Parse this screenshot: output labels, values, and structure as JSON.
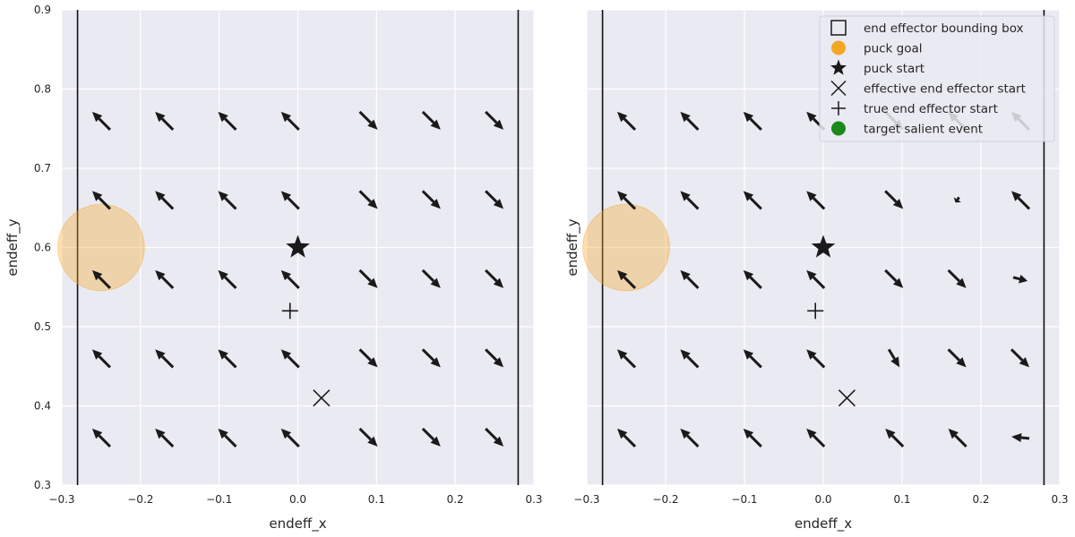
{
  "chart_data": [
    {
      "type": "quiver",
      "xlabel": "endeff_x",
      "ylabel": "endeff_y",
      "xlim": [
        -0.3,
        0.3
      ],
      "ylim": [
        0.3,
        0.9
      ],
      "xticks": [
        "−0.3",
        "−0.2",
        "−0.1",
        "0.0",
        "0.1",
        "0.2",
        "0.3"
      ],
      "yticks": [
        "0.3",
        "0.4",
        "0.5",
        "0.6",
        "0.7",
        "0.8",
        "0.9"
      ],
      "grid": true,
      "bounding_box_x": [
        -0.28,
        0.28
      ],
      "puck_goal": {
        "x": -0.25,
        "y": 0.6,
        "color": "#f5a623"
      },
      "puck_start": {
        "x": 0.0,
        "y": 0.6
      },
      "effective_end_effector_start": {
        "x": 0.03,
        "y": 0.41
      },
      "true_end_effector_start": {
        "x": -0.01,
        "y": 0.52
      },
      "arrow_x": [
        -0.25,
        -0.17,
        -0.09,
        -0.01,
        0.09,
        0.17,
        0.25
      ],
      "arrow_y": [
        0.36,
        0.46,
        0.56,
        0.66,
        0.76
      ],
      "arrows": [
        [
          [
            -1,
            1
          ],
          [
            -1,
            1
          ],
          [
            -1,
            1
          ],
          [
            -1,
            1
          ],
          [
            1,
            -1
          ],
          [
            1,
            -1
          ],
          [
            1,
            -1
          ]
        ],
        [
          [
            -1,
            1
          ],
          [
            -1,
            1
          ],
          [
            -1,
            1
          ],
          [
            -1,
            1
          ],
          [
            1,
            -1
          ],
          [
            1,
            -1
          ],
          [
            1,
            -1
          ]
        ],
        [
          [
            -1,
            1
          ],
          [
            -1,
            1
          ],
          [
            -1,
            1
          ],
          [
            -1,
            1
          ],
          [
            1,
            -1
          ],
          [
            1,
            -1
          ],
          [
            1,
            -1
          ]
        ],
        [
          [
            -1,
            1
          ],
          [
            -1,
            1
          ],
          [
            -1,
            1
          ],
          [
            -1,
            1
          ],
          [
            1,
            -1
          ],
          [
            1,
            -1
          ],
          [
            1,
            -1
          ]
        ],
        [
          [
            -1,
            1
          ],
          [
            -1,
            1
          ],
          [
            -1,
            1
          ],
          [
            -1,
            1
          ],
          [
            1,
            -1
          ],
          [
            1,
            -1
          ],
          [
            1,
            -1
          ]
        ]
      ]
    },
    {
      "type": "quiver",
      "xlabel": "endeff_x",
      "ylabel": "endeff_y",
      "xlim": [
        -0.3,
        0.3
      ],
      "ylim": [
        0.3,
        0.9
      ],
      "xticks": [
        "−0.3",
        "−0.2",
        "−0.1",
        "0.0",
        "0.1",
        "0.2",
        "0.3"
      ],
      "yticks": [
        "0.3",
        "0.4",
        "0.5",
        "0.6",
        "0.7",
        "0.8",
        "0.9"
      ],
      "grid": true,
      "legend_position": "top-right",
      "bounding_box_x": [
        -0.28,
        0.28
      ],
      "puck_goal": {
        "x": -0.25,
        "y": 0.6,
        "color": "#f5a623"
      },
      "puck_start": {
        "x": 0.0,
        "y": 0.6
      },
      "effective_end_effector_start": {
        "x": 0.03,
        "y": 0.41
      },
      "true_end_effector_start": {
        "x": -0.01,
        "y": 0.52
      },
      "arrow_x": [
        -0.25,
        -0.17,
        -0.09,
        -0.01,
        0.09,
        0.17,
        0.25
      ],
      "arrow_y": [
        0.36,
        0.46,
        0.56,
        0.66,
        0.76
      ],
      "arrows": [
        [
          [
            -1,
            1
          ],
          [
            -1,
            1
          ],
          [
            -1,
            1
          ],
          [
            -1,
            1
          ],
          [
            -1,
            1
          ],
          [
            -1,
            1
          ],
          [
            -1,
            0.1
          ]
        ],
        [
          [
            -1,
            1
          ],
          [
            -1,
            1
          ],
          [
            -1,
            1
          ],
          [
            -1,
            1
          ],
          [
            0.6,
            -1
          ],
          [
            1,
            -1
          ],
          [
            1,
            -1
          ]
        ],
        [
          [
            -1,
            1
          ],
          [
            -1,
            1
          ],
          [
            -1,
            1
          ],
          [
            -1,
            1
          ],
          [
            1,
            -1
          ],
          [
            1,
            -1
          ],
          [
            0.8,
            -0.2
          ]
        ],
        [
          [
            -1,
            1
          ],
          [
            -1,
            1
          ],
          [
            -1,
            1
          ],
          [
            -1,
            1
          ],
          [
            1,
            -1
          ],
          [
            -0.2,
            -0.3
          ],
          [
            -1,
            1
          ]
        ],
        [
          [
            -1,
            1
          ],
          [
            -1,
            1
          ],
          [
            -1,
            1
          ],
          [
            -1,
            1
          ],
          [
            1,
            -1
          ],
          [
            -1,
            1
          ],
          [
            -1,
            1
          ]
        ]
      ],
      "legend": [
        {
          "label": "end effector bounding box",
          "marker": "square"
        },
        {
          "label": "puck goal",
          "marker": "circle",
          "color": "#f5a623"
        },
        {
          "label": "puck start",
          "marker": "star"
        },
        {
          "label": "effective end effector start",
          "marker": "x"
        },
        {
          "label": "true end effector start",
          "marker": "plus"
        },
        {
          "label": "target salient event",
          "marker": "circle",
          "color": "#1a8a1a"
        }
      ]
    }
  ]
}
